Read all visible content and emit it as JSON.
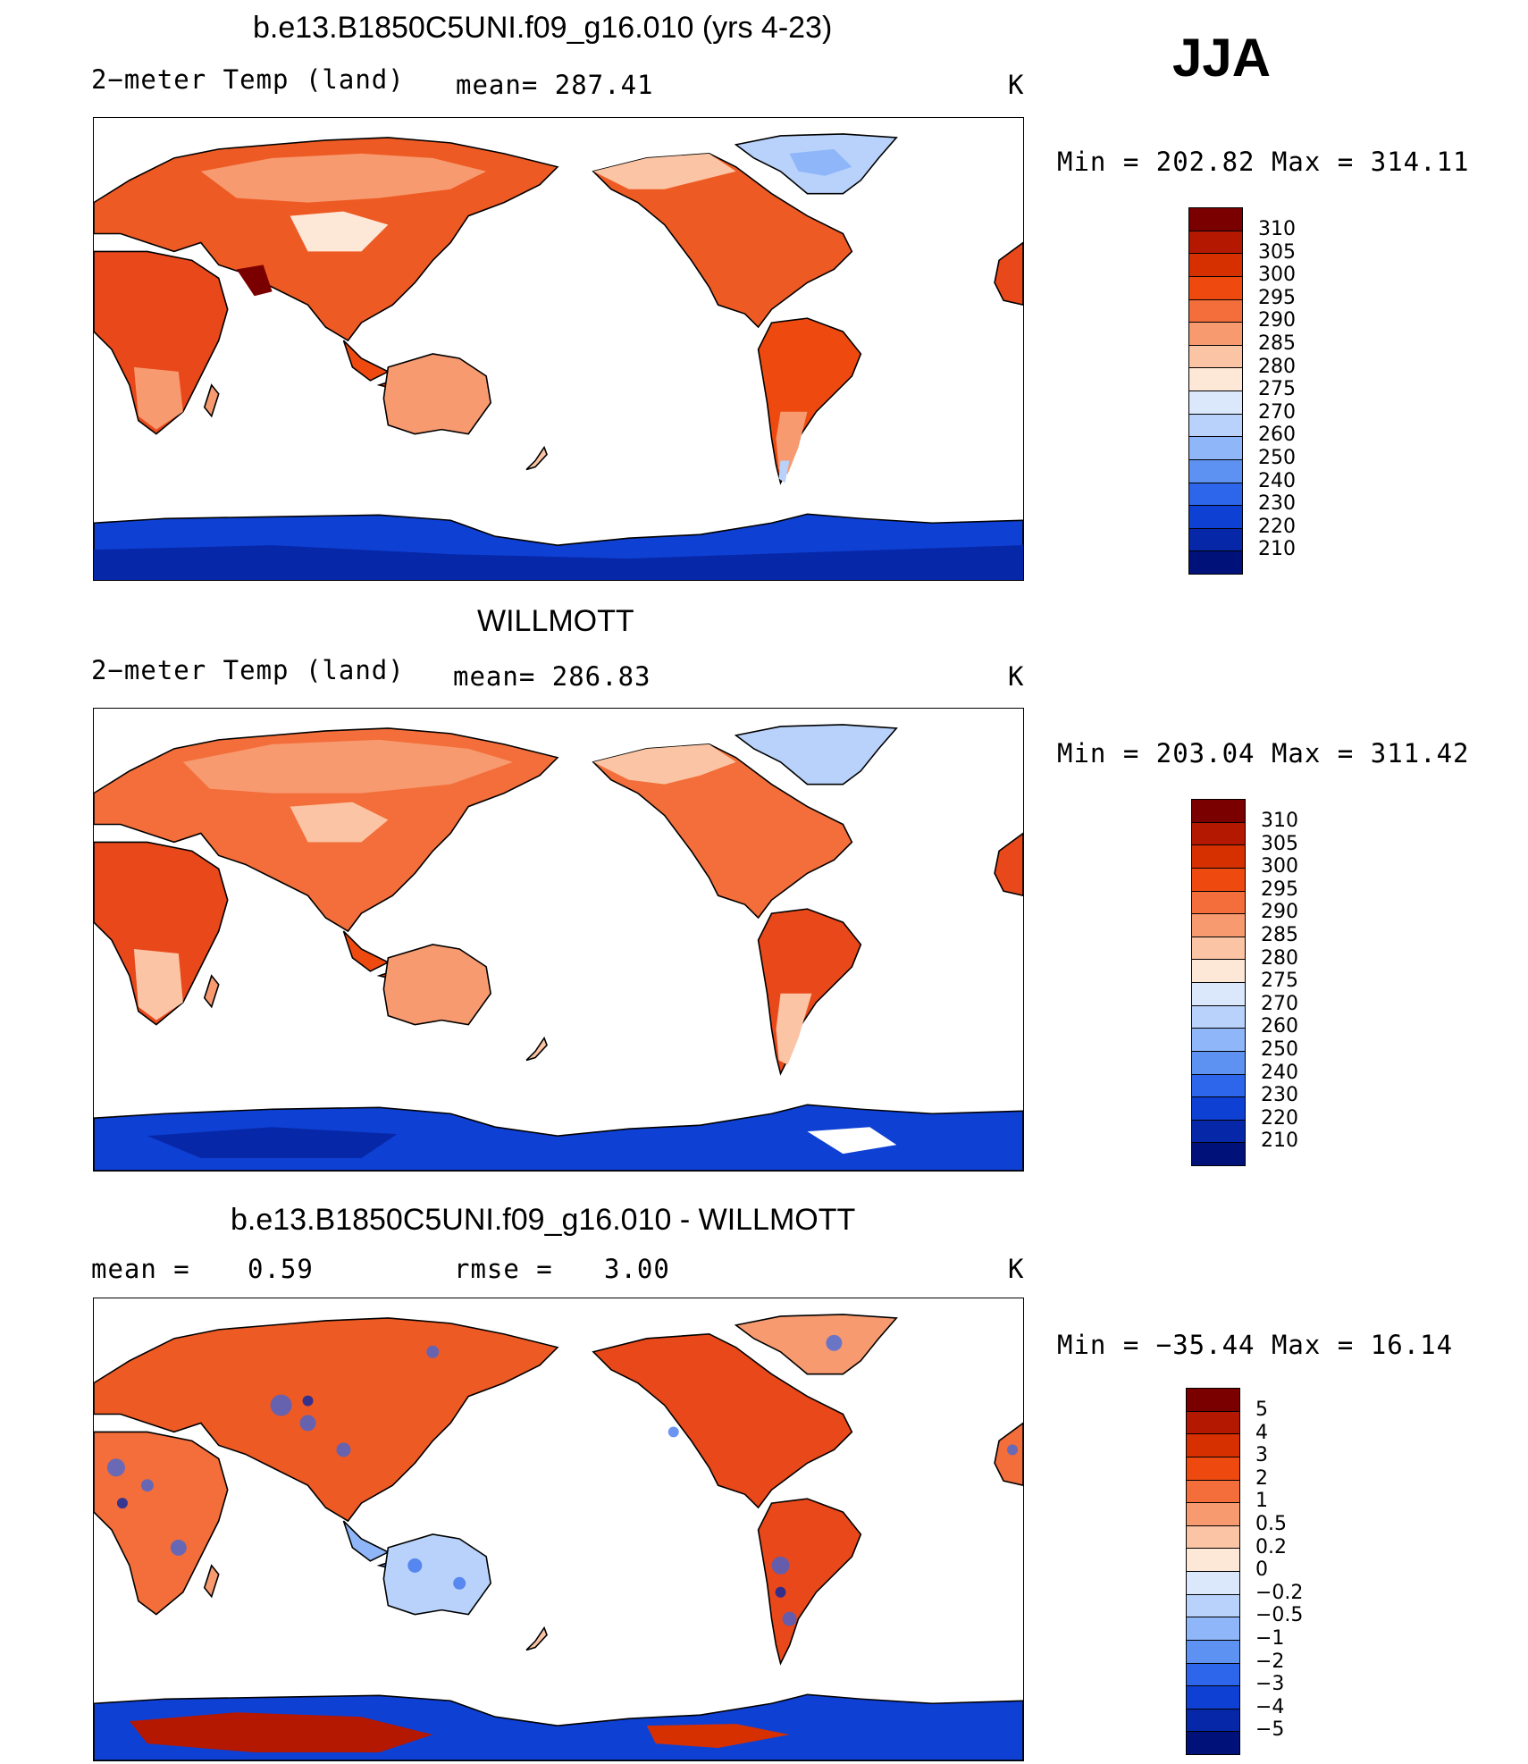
{
  "season": "JJA",
  "panels": [
    {
      "title": "b.e13.B1850C5UNI.f09_g16.010 (yrs 4-23)",
      "left_label": "2−meter Temp (land)",
      "middle_label": "mean= 287.41",
      "units": "K",
      "minmax": "Min = 202.82 Max = 314.11"
    },
    {
      "title": "WILLMOTT",
      "left_label": "2−meter Temp (land)",
      "middle_label": "mean= 286.83",
      "units": "K",
      "minmax": "Min = 203.04 Max = 311.42"
    },
    {
      "title": "b.e13.B1850C5UNI.f09_g16.010 - WILLMOTT",
      "left_label": "mean =",
      "left_value": "0.59",
      "middle_label": "rmse =",
      "middle_value": "3.00",
      "units": "K",
      "minmax": "Min = −35.44 Max = 16.14"
    }
  ],
  "colorbars": {
    "temperature": {
      "labels": [
        "310",
        "305",
        "300",
        "295",
        "290",
        "285",
        "280",
        "275",
        "270",
        "260",
        "250",
        "240",
        "230",
        "220",
        "210"
      ],
      "colors": [
        "#7a0000",
        "#b41800",
        "#d63000",
        "#ee4a10",
        "#f36e3a",
        "#f79a70",
        "#fbc4a4",
        "#fde8d8",
        "#dbe8fb",
        "#b8d2fb",
        "#8fb6f8",
        "#5e92f2",
        "#2d66ea",
        "#0f40d4",
        "#0628a8",
        "#00127a"
      ]
    },
    "difference": {
      "labels": [
        "5",
        "4",
        "3",
        "2",
        "1",
        "0.5",
        "0.2",
        "0",
        "−0.2",
        "−0.5",
        "−1",
        "−2",
        "−3",
        "−4",
        "−5"
      ],
      "colors": [
        "#7a0000",
        "#b41800",
        "#d63000",
        "#ee4a10",
        "#f36e3a",
        "#f79a70",
        "#fbc4a4",
        "#fde8d8",
        "#dbe8fb",
        "#b8d2fb",
        "#8fb6f8",
        "#5e92f2",
        "#2d66ea",
        "#0f40d4",
        "#0628a8",
        "#00127a"
      ]
    }
  }
}
